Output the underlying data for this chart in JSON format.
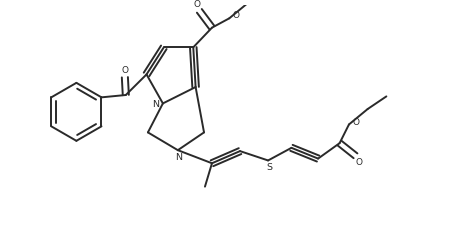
{
  "background": "#ffffff",
  "line_color": "#2a2a2a",
  "line_width": 1.4,
  "fig_width": 4.52,
  "fig_height": 2.39,
  "dpi": 100,
  "xlim": [
    0,
    9.5
  ],
  "ylim": [
    0,
    5.0
  ]
}
